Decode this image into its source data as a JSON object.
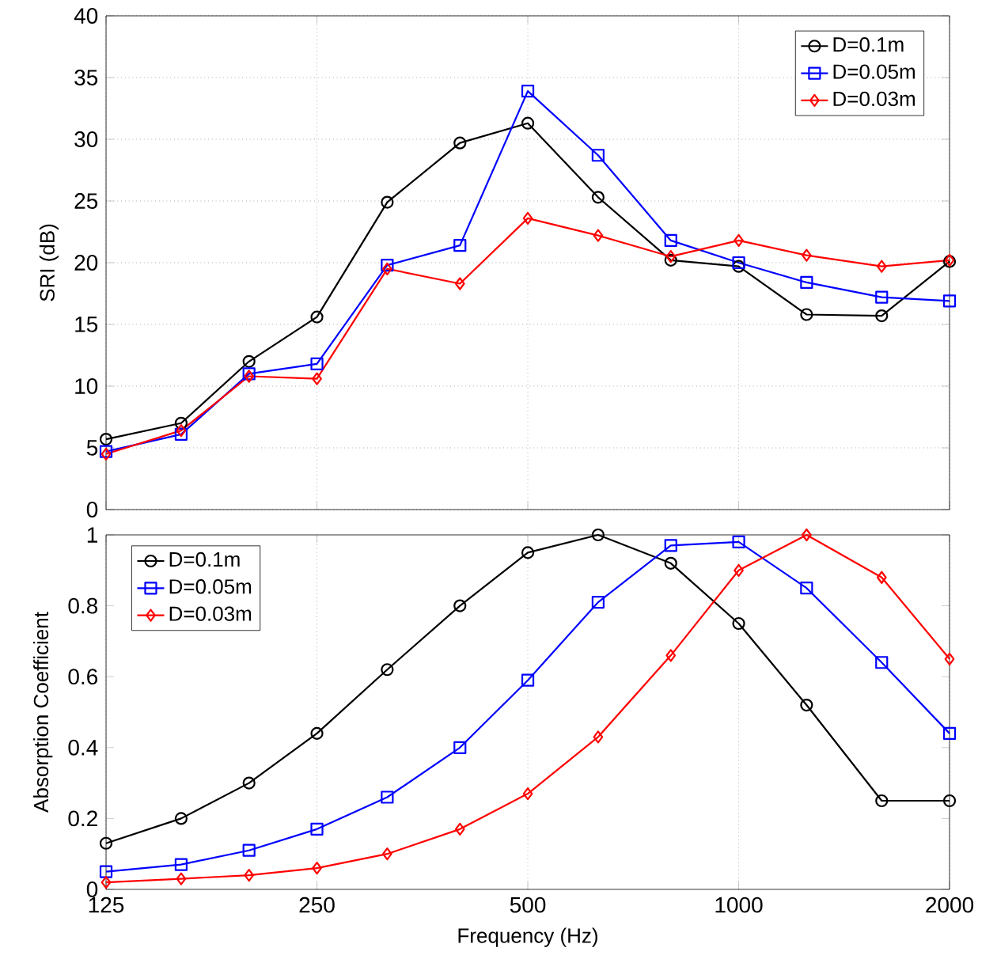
{
  "chart_data": [
    {
      "type": "line",
      "ylabel": "SRI (dB)",
      "x": [
        125,
        160,
        200,
        250,
        315,
        400,
        500,
        630,
        800,
        1000,
        1250,
        1600,
        2000
      ],
      "log": "x",
      "xlim": [
        125,
        2000
      ],
      "xticks": [
        125,
        250,
        500,
        1000,
        2000
      ],
      "ylim": [
        0,
        40
      ],
      "yticks": [
        0,
        5,
        10,
        15,
        20,
        25,
        30,
        35,
        40
      ],
      "grid": true,
      "legend": "top right",
      "tick_labels": "y",
      "series": [
        {
          "name": "D=0.1m",
          "color": "#000000",
          "marker": "circle",
          "values": [
            5.7,
            7.0,
            12.0,
            15.6,
            24.9,
            29.7,
            31.3,
            25.3,
            20.2,
            19.7,
            15.8,
            15.7,
            20.1
          ]
        },
        {
          "name": "D=0.05m",
          "color": "#0000ff",
          "marker": "square",
          "values": [
            4.7,
            6.1,
            11.0,
            11.8,
            19.8,
            21.4,
            33.9,
            28.7,
            21.8,
            20.0,
            18.4,
            17.2,
            16.9
          ]
        },
        {
          "name": "D=0.03m",
          "color": "#ff0000",
          "marker": "diamond",
          "values": [
            4.5,
            6.4,
            10.8,
            10.6,
            19.5,
            18.3,
            23.6,
            22.2,
            20.5,
            21.8,
            20.6,
            19.7,
            20.2
          ]
        }
      ]
    },
    {
      "type": "line",
      "xlabel": "Frequency (Hz)",
      "ylabel": "Absorption Coefficient",
      "x": [
        125,
        160,
        200,
        250,
        315,
        400,
        500,
        630,
        800,
        1000,
        1250,
        1600,
        2000
      ],
      "log": "x",
      "xlim": [
        125,
        2000
      ],
      "xticks": [
        125,
        250,
        500,
        1000,
        2000
      ],
      "ylim": [
        0,
        1
      ],
      "yticks": [
        0,
        0.2,
        0.4,
        0.6,
        0.8,
        1
      ],
      "grid": "x",
      "legend": "top left",
      "series": [
        {
          "name": "D=0.1m",
          "color": "#000000",
          "marker": "circle",
          "values": [
            0.13,
            0.2,
            0.3,
            0.44,
            0.62,
            0.8,
            0.95,
            1.0,
            0.92,
            0.75,
            0.52,
            0.25,
            0.25
          ]
        },
        {
          "name": "D=0.05m",
          "color": "#0000ff",
          "marker": "square",
          "values": [
            0.05,
            0.07,
            0.11,
            0.17,
            0.26,
            0.4,
            0.59,
            0.81,
            0.97,
            0.98,
            0.85,
            0.64,
            0.44
          ]
        },
        {
          "name": "D=0.03m",
          "color": "#ff0000",
          "marker": "diamond",
          "values": [
            0.02,
            0.03,
            0.04,
            0.06,
            0.1,
            0.17,
            0.27,
            0.43,
            0.66,
            0.9,
            1.0,
            0.88,
            0.65
          ]
        }
      ]
    }
  ]
}
